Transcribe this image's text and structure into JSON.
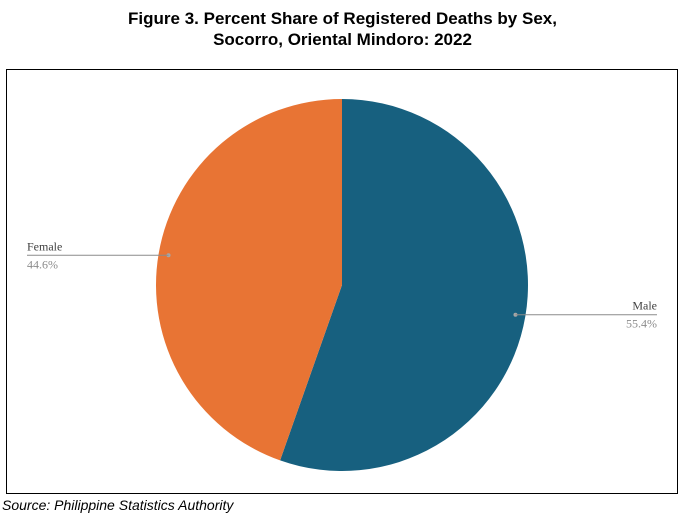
{
  "title_line1": "Figure 3. Percent Share of Registered Deaths by Sex,",
  "title_line2": "Socorro, Oriental Mindoro: 2022",
  "source": "Source: Philippine Statistics Authority",
  "chart_data": {
    "type": "pie",
    "slices": [
      {
        "label": "Male",
        "value": 55.4,
        "value_label": "55.4%",
        "color": "#17607f"
      },
      {
        "label": "Female",
        "value": 44.6,
        "value_label": "44.6%",
        "color": "#e87434"
      }
    ],
    "start_angle_deg": 0,
    "direction": "clockwise",
    "legend": "none"
  }
}
